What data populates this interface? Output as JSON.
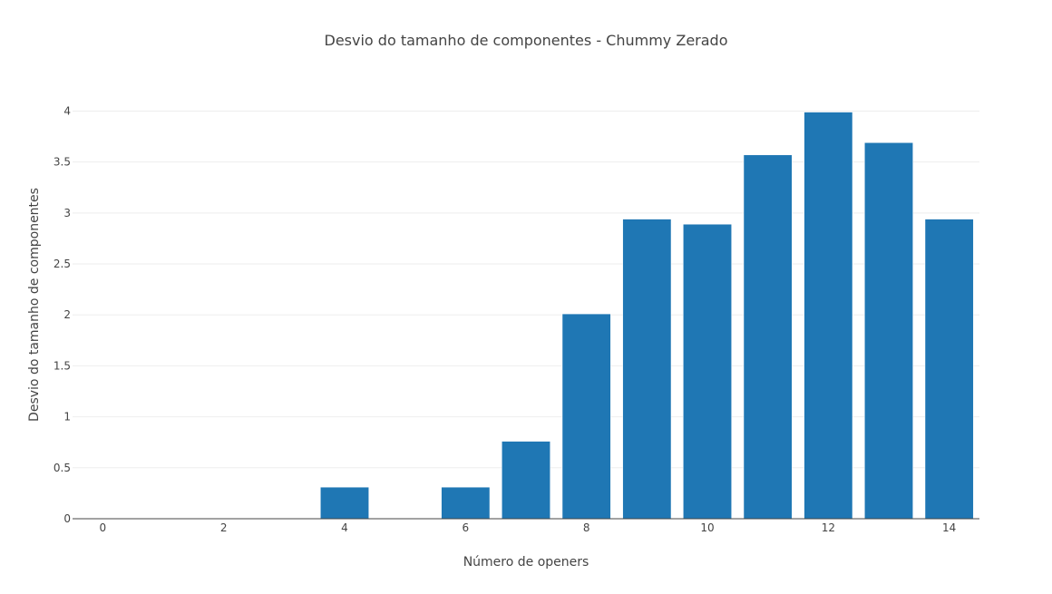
{
  "chart_data": {
    "type": "bar",
    "title": "Desvio do tamanho de componentes - Chummy Zerado",
    "xlabel": "Número de openers",
    "ylabel": "Desvio do tamanho de componentes",
    "x": [
      0,
      1,
      2,
      3,
      4,
      5,
      6,
      7,
      8,
      9,
      10,
      11,
      12,
      13,
      14
    ],
    "values": [
      0,
      0,
      0,
      0,
      0.31,
      0,
      0.31,
      0.76,
      2.01,
      2.94,
      2.89,
      3.57,
      3.99,
      3.69,
      2.94
    ],
    "x_ticks": [
      0,
      2,
      4,
      6,
      8,
      10,
      12,
      14
    ],
    "y_ticks": [
      0,
      0.5,
      1,
      1.5,
      2,
      2.5,
      3,
      3.5,
      4
    ],
    "xlim": [
      -0.5,
      14.5
    ],
    "ylim": [
      0,
      4.2
    ],
    "bar_color": "#1f77b4",
    "grid": true,
    "legend": "none"
  }
}
